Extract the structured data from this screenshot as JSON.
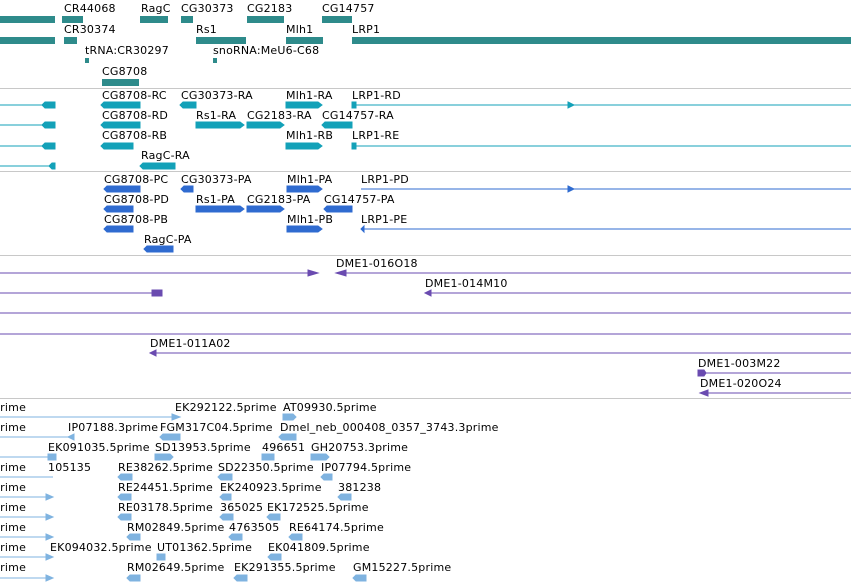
{
  "tracks": {
    "genes": {
      "color": "#2e8b8b",
      "labels": [
        "CR44068",
        "RagC",
        "CG30373",
        "CG2183",
        "CG14757",
        "CR30374",
        "Rs1",
        "Mlh1",
        "LRP1",
        "tRNA:CR30297",
        "snoRNA:MeU6-C68",
        "CG8708"
      ]
    },
    "transcripts": {
      "color": "#13a1b8",
      "labels": [
        "CG8708-RC",
        "CG30373-RA",
        "Mlh1-RA",
        "LRP1-RD",
        "CG8708-RD",
        "Rs1-RA",
        "CG2183-RA",
        "CG14757-RA",
        "CG8708-RB",
        "Mlh1-RB",
        "LRP1-RE",
        "RagC-RA"
      ]
    },
    "proteins": {
      "color": "#2f6bd0",
      "labels": [
        "CG8708-PC",
        "CG30373-PA",
        "Mlh1-PA",
        "LRP1-PD",
        "CG8708-PD",
        "Rs1-PA",
        "CG2183-PA",
        "CG14757-PA",
        "CG8708-PB",
        "Mlh1-PB",
        "LRP1-PE",
        "RagC-PA"
      ]
    },
    "clones": {
      "color": "#6a4bb0",
      "labels": [
        "DME1-016O18",
        "DME1-014M10",
        "DME1-011A02",
        "DME1-003M22",
        "DME1-020O24"
      ]
    },
    "ests": {
      "color": "#7fb3e0",
      "labels": [
        "prime",
        "EK292122.5prime",
        "AT09930.5prime",
        "prime",
        "IP07188.3prime",
        "FGM317C04.5prime",
        "Dmel_neb_000408_0357_3743.3prime",
        "EK091035.5prime",
        "SD13953.5prime",
        "496651",
        "GH20753.3prime",
        "prime",
        "105135",
        "RE38262.5prime",
        "SD22350.5prime",
        "IP07794.5prime",
        "prime",
        "RE24451.5prime",
        "EK240923.5prime",
        "381238",
        "prime",
        "RE03178.5prime",
        "365025",
        "EK172525.5prime",
        "prime",
        "RM02849.5prime",
        "4763505",
        "RE64174.5prime",
        "prime",
        "EK094032.5prime",
        "UT01362.5prime",
        "EK041809.5prime",
        "prime",
        "RM02649.5prime",
        "EK291355.5prime",
        "GM15227.5prime"
      ]
    }
  }
}
